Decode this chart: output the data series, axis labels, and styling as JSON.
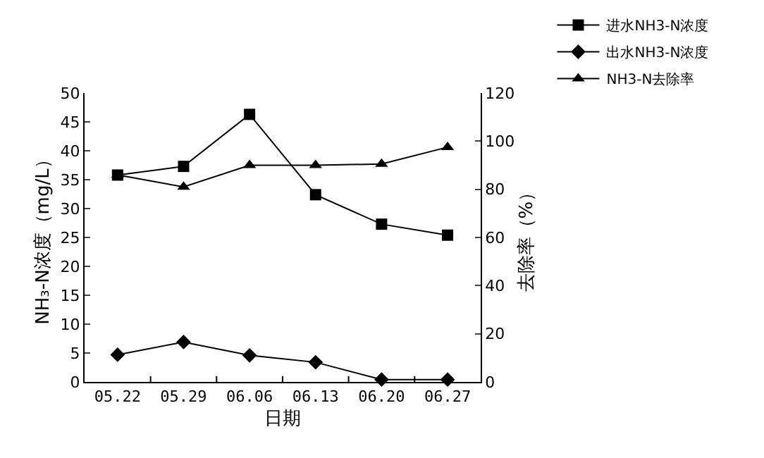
{
  "chart_data": {
    "type": "line",
    "xlabel": "日期",
    "ylabel": "NH₃-N浓度（mg/L）",
    "y2label": "去除率（%）",
    "categories": [
      "05.22",
      "05.29",
      "06.06",
      "06.13",
      "06.20",
      "06.27"
    ],
    "series": [
      {
        "name": "进水NH3-N浓度",
        "color": "#000000",
        "marker": "square",
        "values": [
          35.8,
          37.3,
          46.3,
          32.4,
          27.3,
          25.4
        ]
      },
      {
        "name": "出水NH3-N浓度",
        "color": "#000000",
        "marker": "diamond",
        "values": [
          4.7,
          6.9,
          4.6,
          3.4,
          0.4,
          0.4
        ]
      },
      {
        "name": "NH3-N去除率",
        "color": "#000000",
        "marker": "triangle",
        "axis": "y2",
        "values": [
          86,
          81,
          90,
          90,
          90.5,
          97.5
        ]
      }
    ],
    "ylim": [
      0,
      50
    ],
    "yticks": [
      0,
      5,
      10,
      15,
      20,
      25,
      30,
      35,
      40,
      45,
      50
    ],
    "y2lim": [
      0,
      120
    ],
    "y2ticks": [
      0,
      20,
      40,
      60,
      80,
      100,
      120
    ],
    "legend": "top right"
  }
}
